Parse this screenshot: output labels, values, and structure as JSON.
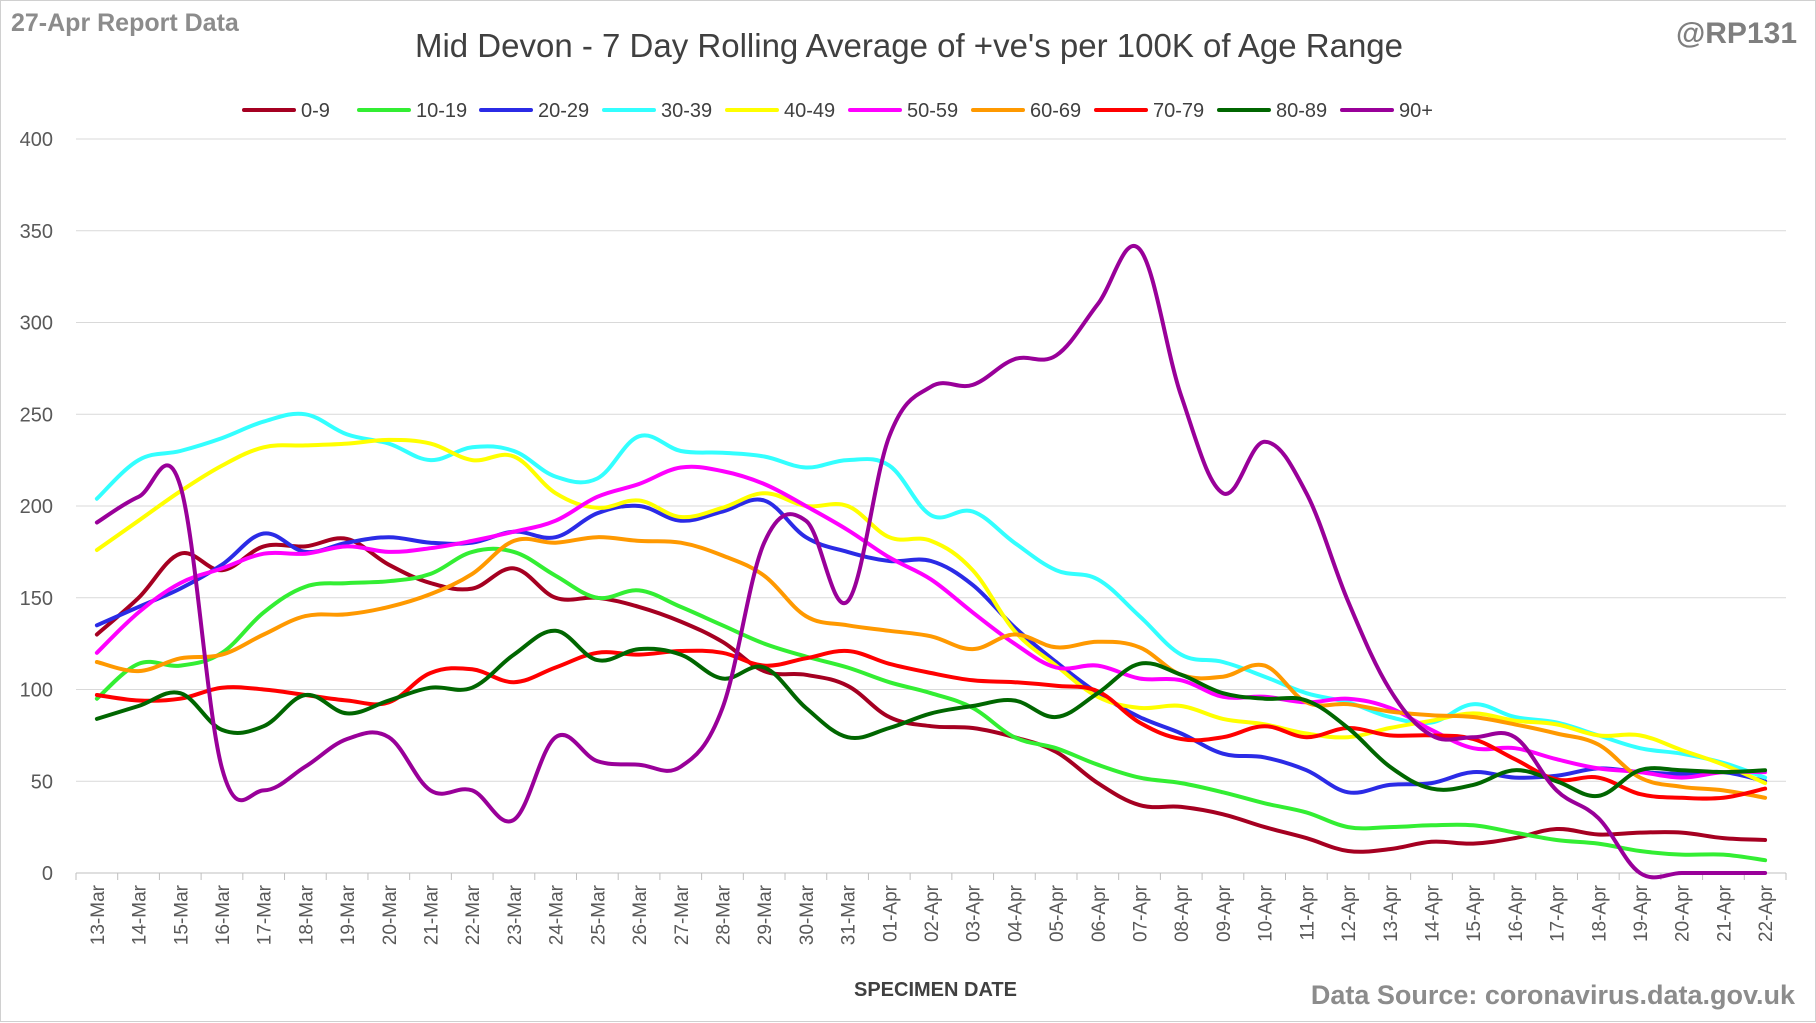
{
  "header": {
    "report_label": "27-Apr Report Data",
    "handle": "@RP131"
  },
  "footer": {
    "source": "Data Source: coronavirus.data.gov.uk"
  },
  "chart_data": {
    "type": "line",
    "title": "Mid Devon - 7 Day Rolling Average of +ve's per 100K of Age Range",
    "xlabel": "SPECIMEN DATE",
    "ylabel": "",
    "ylim": [
      0,
      400
    ],
    "yticks": [
      0,
      50,
      100,
      150,
      200,
      250,
      300,
      350,
      400
    ],
    "grid": true,
    "legend_position": "top",
    "smooth": true,
    "categories": [
      "13-Mar",
      "14-Mar",
      "15-Mar",
      "16-Mar",
      "17-Mar",
      "18-Mar",
      "19-Mar",
      "20-Mar",
      "21-Mar",
      "22-Mar",
      "23-Mar",
      "24-Mar",
      "25-Mar",
      "26-Mar",
      "27-Mar",
      "28-Mar",
      "29-Mar",
      "30-Mar",
      "31-Mar",
      "01-Apr",
      "02-Apr",
      "03-Apr",
      "04-Apr",
      "05-Apr",
      "06-Apr",
      "07-Apr",
      "08-Apr",
      "09-Apr",
      "10-Apr",
      "11-Apr",
      "12-Apr",
      "13-Apr",
      "14-Apr",
      "15-Apr",
      "16-Apr",
      "17-Apr",
      "18-Apr",
      "19-Apr",
      "20-Apr",
      "21-Apr",
      "22-Apr"
    ],
    "series": [
      {
        "name": "0-9",
        "color": "#a50021",
        "values": [
          130,
          150,
          174,
          165,
          178,
          178,
          182,
          168,
          158,
          155,
          166,
          150,
          150,
          145,
          137,
          126,
          110,
          108,
          102,
          85,
          80,
          79,
          74,
          66,
          49,
          37,
          36,
          32,
          25,
          19,
          12,
          13,
          17,
          16,
          19,
          24,
          21,
          22,
          22,
          19,
          18
        ]
      },
      {
        "name": "10-19",
        "color": "#33ee33",
        "values": [
          95,
          114,
          113,
          120,
          142,
          156,
          158,
          159,
          163,
          175,
          175,
          162,
          150,
          154,
          145,
          135,
          125,
          118,
          112,
          104,
          98,
          90,
          74,
          68,
          59,
          52,
          49,
          44,
          38,
          33,
          25,
          25,
          26,
          26,
          22,
          18,
          16,
          12,
          10,
          10,
          7
        ]
      },
      {
        "name": "20-29",
        "color": "#2b2be6",
        "values": [
          135,
          145,
          155,
          168,
          185,
          175,
          180,
          183,
          180,
          180,
          186,
          183,
          196,
          200,
          192,
          197,
          203,
          183,
          175,
          170,
          170,
          157,
          134,
          115,
          98,
          85,
          76,
          65,
          63,
          56,
          44,
          48,
          49,
          55,
          52,
          53,
          57,
          55,
          54,
          55,
          50
        ]
      },
      {
        "name": "30-39",
        "color": "#33ffff",
        "values": [
          204,
          225,
          230,
          237,
          246,
          250,
          239,
          234,
          225,
          232,
          230,
          216,
          215,
          238,
          230,
          229,
          227,
          221,
          225,
          222,
          195,
          197,
          180,
          165,
          160,
          140,
          119,
          115,
          107,
          98,
          93,
          85,
          82,
          92,
          85,
          82,
          75,
          68,
          65,
          60,
          52
        ]
      },
      {
        "name": "40-49",
        "color": "#ffff00",
        "values": [
          176,
          192,
          208,
          222,
          232,
          233,
          234,
          236,
          234,
          225,
          227,
          207,
          199,
          203,
          194,
          199,
          207,
          200,
          200,
          183,
          181,
          165,
          132,
          113,
          96,
          90,
          91,
          84,
          81,
          76,
          74,
          79,
          83,
          87,
          83,
          81,
          75,
          75,
          67,
          59,
          49
        ]
      },
      {
        "name": "50-59",
        "color": "#ff00ff",
        "values": [
          120,
          142,
          158,
          166,
          174,
          174,
          178,
          175,
          177,
          181,
          186,
          192,
          205,
          212,
          221,
          219,
          212,
          200,
          187,
          172,
          160,
          142,
          125,
          112,
          113,
          106,
          105,
          96,
          96,
          93,
          95,
          90,
          78,
          68,
          68,
          62,
          57,
          55,
          52,
          55,
          55
        ]
      },
      {
        "name": "60-69",
        "color": "#ff9900",
        "values": [
          115,
          110,
          117,
          119,
          130,
          140,
          141,
          145,
          152,
          163,
          181,
          180,
          183,
          181,
          180,
          173,
          162,
          140,
          135,
          132,
          129,
          122,
          130,
          123,
          126,
          123,
          108,
          107,
          113,
          93,
          92,
          88,
          86,
          85,
          81,
          76,
          70,
          52,
          47,
          45,
          41
        ]
      },
      {
        "name": "70-79",
        "color": "#ff0000",
        "values": [
          97,
          94,
          95,
          101,
          100,
          97,
          94,
          93,
          109,
          111,
          104,
          112,
          120,
          119,
          121,
          120,
          113,
          117,
          121,
          114,
          109,
          105,
          104,
          102,
          99,
          82,
          73,
          74,
          80,
          74,
          79,
          75,
          75,
          73,
          62,
          51,
          52,
          43,
          41,
          41,
          46
        ]
      },
      {
        "name": "80-89",
        "color": "#006600",
        "values": [
          84,
          91,
          98,
          78,
          80,
          97,
          87,
          94,
          101,
          101,
          119,
          132,
          116,
          122,
          119,
          106,
          112,
          90,
          74,
          79,
          87,
          91,
          94,
          85,
          98,
          114,
          108,
          98,
          95,
          94,
          79,
          58,
          46,
          48,
          56,
          50,
          42,
          56,
          56,
          55,
          56
        ]
      },
      {
        "name": "90+",
        "color": "#990099",
        "values": [
          191,
          205,
          211,
          57,
          45,
          58,
          73,
          74,
          45,
          45,
          29,
          74,
          61,
          59,
          58,
          90,
          180,
          192,
          148,
          238,
          265,
          266,
          280,
          282,
          310,
          340,
          260,
          207,
          235,
          207,
          148,
          100,
          75,
          74,
          74,
          45,
          30,
          0,
          0,
          0,
          0
        ]
      }
    ]
  }
}
